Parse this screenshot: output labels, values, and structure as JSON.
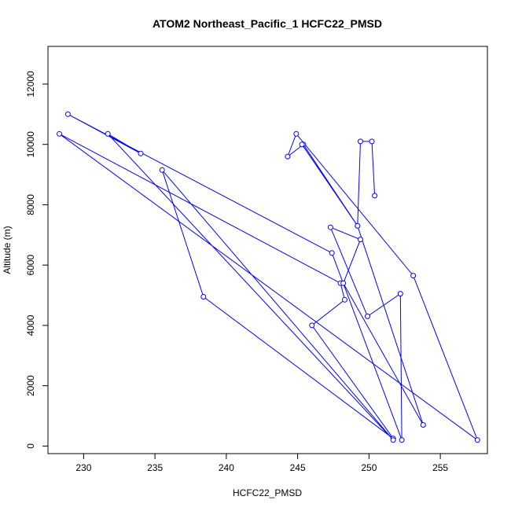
{
  "chart_data": {
    "type": "line",
    "title": "ATOM2 Northeast_Pacific_1 HCFC22_PMSD",
    "xlabel": "HCFC22_PMSD",
    "ylabel": "Altitude (m)",
    "xlim": [
      227.5,
      258.3
    ],
    "ylim": [
      -250,
      13250
    ],
    "xticks": [
      230,
      235,
      240,
      245,
      250,
      255
    ],
    "yticks": [
      0,
      2000,
      4000,
      6000,
      8000,
      10000,
      12000
    ],
    "xtick_labels": [
      "230",
      "235",
      "240",
      "245",
      "250",
      "255"
    ],
    "ytick_labels": [
      "0",
      "2000",
      "4000",
      "6000",
      "8000",
      "10000",
      "12000"
    ],
    "grid": false,
    "colors": {
      "series": "#0000ff",
      "axis": "#000000"
    },
    "series": [
      {
        "x": [
          250.4,
          250.2,
          249.4,
          249.2,
          245.4,
          244.3,
          244.9,
          253.1,
          257.6,
          228.3,
          248.0,
          248.3,
          246.0,
          251.7,
          238.4,
          235.5,
          251.7,
          231.7,
          234.0,
          228.9,
          247.4,
          252.3,
          252.2,
          249.9,
          247.3,
          249.4,
          248.2,
          253.8,
          249.2,
          245.3
        ],
        "y": [
          8300,
          10100,
          10100,
          7300,
          10000,
          9600,
          10350,
          5650,
          200,
          10350,
          5400,
          4850,
          4000,
          250,
          4950,
          9150,
          200,
          10350,
          9700,
          11000,
          6400,
          200,
          5050,
          4300,
          7250,
          6850,
          5400,
          700,
          7300,
          10000
        ]
      }
    ]
  }
}
